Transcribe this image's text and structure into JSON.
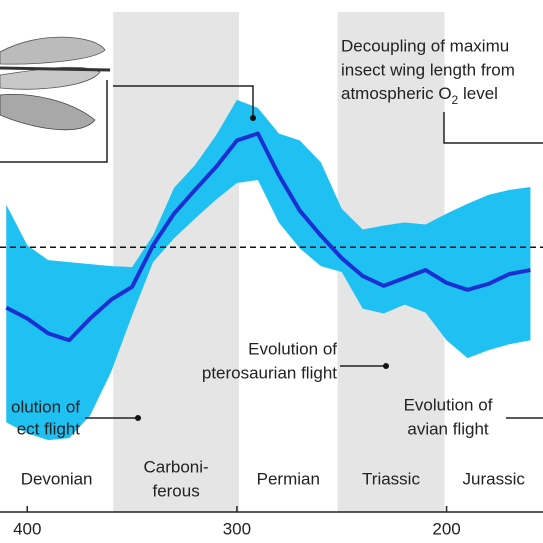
{
  "chart_data": {
    "type": "line",
    "x": [
      410,
      400,
      390,
      380,
      370,
      360,
      350,
      340,
      330,
      320,
      310,
      300,
      290,
      280,
      270,
      260,
      250,
      240,
      230,
      220,
      210,
      200,
      190,
      180,
      170,
      160
    ],
    "xlim": [
      413,
      154
    ],
    "xticks": [
      400,
      300,
      200
    ],
    "ylim": [
      0,
      46
    ],
    "series": [
      {
        "color": "#1b2fd3",
        "values": [
          14.9,
          13.8,
          12.3,
          11.6,
          13.8,
          15.7,
          17.0,
          21.2,
          24.4,
          26.8,
          29.1,
          31.8,
          32.5,
          28.3,
          24.7,
          22.2,
          19.9,
          18.1,
          17.1,
          17.9,
          18.7,
          17.4,
          16.7,
          17.3,
          18.3,
          18.7
        ]
      }
    ],
    "band": {
      "color": "#1fc0f2",
      "upper": [
        25.3,
        21.2,
        19.7,
        19.5,
        19.3,
        19.1,
        19.0,
        22.2,
        27.0,
        29.3,
        32.3,
        35.9,
        35.1,
        32.5,
        31.8,
        29.6,
        24.9,
        22.8,
        23.2,
        23.5,
        23.3,
        24.4,
        25.4,
        26.3,
        26.8,
        27.1
      ],
      "lower": [
        3.3,
        2.2,
        1.5,
        1.7,
        4.0,
        8.4,
        14.1,
        19.5,
        21.9,
        23.9,
        25.8,
        27.5,
        27.8,
        23.5,
        20.9,
        19.1,
        18.5,
        14.8,
        14.3,
        15.2,
        14.4,
        11.6,
        9.8,
        10.6,
        11.2,
        11.6
      ]
    },
    "reference_line": 21,
    "periods": [
      {
        "label": [
          "Devonian"
        ],
        "start": 413,
        "end": 359,
        "shaded": false
      },
      {
        "label": [
          "Carboni-",
          "ferous"
        ],
        "start": 359,
        "end": 299,
        "shaded": true
      },
      {
        "label": [
          "Permian"
        ],
        "start": 299,
        "end": 252,
        "shaded": false
      },
      {
        "label": [
          "Triassic"
        ],
        "start": 252,
        "end": 201,
        "shaded": true
      },
      {
        "label": [
          "Jurassic"
        ],
        "start": 201,
        "end": 154,
        "shaded": false
      }
    ],
    "annotations": {
      "decoupling": {
        "lines": [
          "Decoupling of maximu",
          "insect wing length from"
        ],
        "last_line": [
          "atmospheric O",
          "2",
          " level"
        ]
      },
      "pterosaur": {
        "lines": [
          "Evolution of",
          "pterosaurian flight"
        ]
      },
      "insect": {
        "lines": [
          "olution of",
          "ect flight"
        ]
      },
      "avian": {
        "lines": [
          "Evolution of",
          "avian flight"
        ]
      }
    }
  }
}
